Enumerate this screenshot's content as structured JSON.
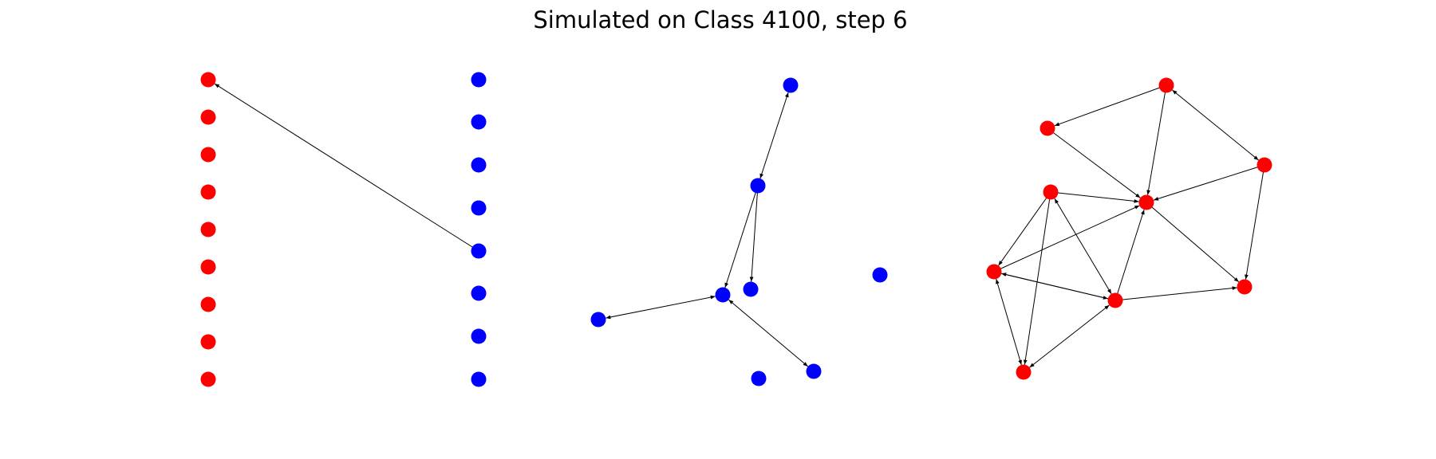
{
  "title": "Simulated on Class 4100, step 6",
  "colors": {
    "red_nodes": "#ff0000",
    "blue_nodes": "#0000ff",
    "edges": "#000000",
    "background": "#ffffff"
  },
  "graph": {
    "node_count": 34,
    "edge_count": 24,
    "edge_style": "directed arrows",
    "node_groups": [
      {
        "color": "red",
        "count": 9,
        "layout": "vertical column"
      },
      {
        "color": "blue",
        "count": 8,
        "layout": "vertical column"
      },
      {
        "color": "blue",
        "count": 8,
        "layout": "scattered cluster"
      },
      {
        "color": "red",
        "count": 9,
        "layout": "scattered cluster"
      }
    ]
  }
}
